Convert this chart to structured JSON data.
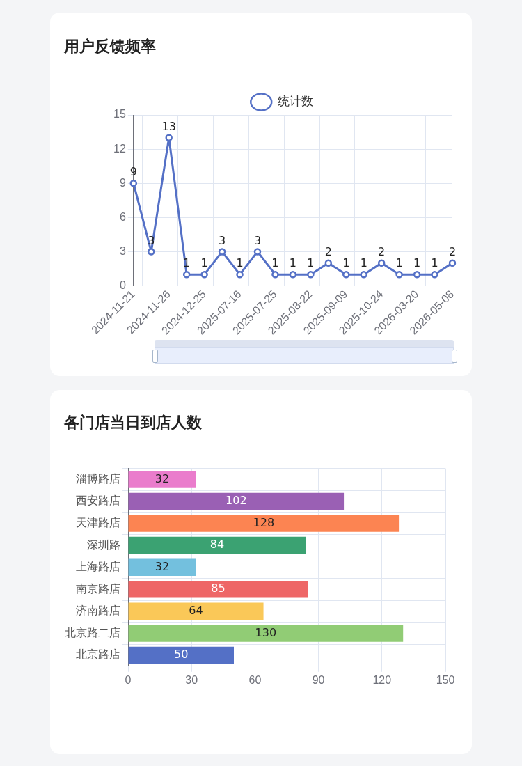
{
  "chart_data": [
    {
      "type": "line",
      "title": "用户反馈频率",
      "categories": [
        "2024-11-21",
        null,
        "2024-11-26",
        null,
        "2024-12-25",
        null,
        "2025-07-16",
        null,
        "2025-07-25",
        null,
        "2025-08-22",
        null,
        "2025-09-09",
        null,
        "2025-10-24",
        null,
        "2026-03-20",
        null,
        "2026-05-08"
      ],
      "series": [
        {
          "name": "统计数",
          "color": "#5470c6",
          "values": [
            9,
            3,
            13,
            1,
            1,
            3,
            1,
            3,
            1,
            1,
            1,
            2,
            1,
            1,
            2,
            1,
            1,
            1,
            2
          ]
        }
      ],
      "ylim": [
        0,
        15
      ],
      "yticks": [
        0,
        3,
        6,
        9,
        12,
        15
      ],
      "grid": true,
      "legend": "top",
      "marker": "circle",
      "line_style": "solid",
      "data_labels": true
    },
    {
      "type": "bar",
      "title": "各门店当日到店人数",
      "orientation": "horizontal",
      "categories": [
        "淄博路店",
        "西安路店",
        "天津路店",
        "深圳路",
        "上海路店",
        "南京路店",
        "济南路店",
        "北京路二店",
        "北京路店"
      ],
      "values": [
        32,
        102,
        128,
        84,
        32,
        85,
        64,
        130,
        50
      ],
      "colors": [
        "#ea7ccc",
        "#9a60b4",
        "#fc8452",
        "#3ba272",
        "#73c0de",
        "#ee6666",
        "#fac858",
        "#91cc75",
        "#5470c6"
      ],
      "xlim": [
        0,
        150
      ],
      "xticks": [
        0,
        30,
        60,
        90,
        120,
        150
      ],
      "grid": true,
      "data_labels": true
    }
  ]
}
